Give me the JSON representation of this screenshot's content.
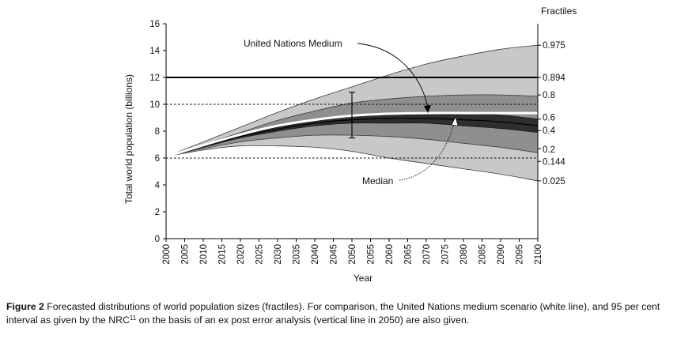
{
  "chart_data": {
    "type": "area",
    "title": "",
    "xlabel": "Year",
    "ylabel": "Total world population (billions)",
    "xlim": [
      2000,
      2100
    ],
    "ylim": [
      0,
      16
    ],
    "xticks": [
      2000,
      2005,
      2010,
      2015,
      2020,
      2025,
      2030,
      2035,
      2040,
      2045,
      2050,
      2055,
      2060,
      2065,
      2070,
      2075,
      2080,
      2085,
      2090,
      2095,
      2100
    ],
    "yticks": [
      0,
      2,
      4,
      6,
      8,
      10,
      12,
      14,
      16
    ],
    "fractiles_header": "Fractiles",
    "x": [
      2000,
      2010,
      2020,
      2030,
      2040,
      2050,
      2060,
      2070,
      2080,
      2090,
      2100
    ],
    "series": [
      {
        "name": "0.975",
        "values": [
          6.1,
          7.2,
          8.3,
          9.4,
          10.4,
          11.3,
          12.2,
          13.0,
          13.6,
          14.1,
          14.4
        ]
      },
      {
        "name": "0.8",
        "values": [
          6.1,
          7.0,
          7.9,
          8.8,
          9.5,
          10.1,
          10.4,
          10.6,
          10.7,
          10.7,
          10.6
        ]
      },
      {
        "name": "0.6",
        "values": [
          6.1,
          6.9,
          7.7,
          8.3,
          8.8,
          9.1,
          9.3,
          9.3,
          9.3,
          9.2,
          8.9
        ]
      },
      {
        "name": "0.4",
        "values": [
          6.1,
          6.8,
          7.5,
          8.0,
          8.4,
          8.6,
          8.6,
          8.6,
          8.4,
          8.2,
          7.9
        ]
      },
      {
        "name": "0.2",
        "values": [
          6.1,
          6.7,
          7.2,
          7.5,
          7.7,
          7.7,
          7.6,
          7.4,
          7.1,
          6.8,
          6.4
        ]
      },
      {
        "name": "0.025",
        "values": [
          6.1,
          6.6,
          6.9,
          6.9,
          6.8,
          6.5,
          6.0,
          5.6,
          5.2,
          4.8,
          4.3
        ]
      },
      {
        "name": "Median",
        "values": [
          6.1,
          6.85,
          7.6,
          8.15,
          8.6,
          8.85,
          8.95,
          8.95,
          8.85,
          8.7,
          8.4
        ]
      },
      {
        "name": "United Nations Medium",
        "values": [
          6.1,
          6.95,
          7.75,
          8.4,
          8.85,
          9.15,
          9.3,
          9.35,
          9.35,
          9.35,
          9.35
        ]
      }
    ],
    "reference_lines": [
      {
        "y": 12,
        "label": "0.894",
        "style": "solid"
      },
      {
        "y": 10,
        "label": "",
        "style": "dashed"
      },
      {
        "y": 6,
        "label": "0.144",
        "style": "dashed"
      }
    ],
    "error_bar": {
      "x": 2050,
      "low": 7.5,
      "high": 10.9
    },
    "annotations": [
      "United Nations Medium",
      "Median"
    ],
    "right_labels": [
      "0.975",
      "0.894",
      "0.8",
      "0.6",
      "0.4",
      "0.2",
      "0.144",
      "0.025"
    ],
    "colors": {
      "outer_band": "#c8c8c8",
      "mid_band": "#8f8f8f",
      "inner_band": "#2e2e2e",
      "un_line": "#ffffff"
    }
  },
  "caption": {
    "figure_label": "Figure 2",
    "text_before_ref": "Forecasted distributions of world population sizes (fractiles). For comparison, the United Nations medium scenario (white line), and 95 per cent interval as given by the NRC",
    "ref": "11",
    "text_after_ref": " on the basis of an ex post error analysis (vertical line in 2050) are also given."
  }
}
